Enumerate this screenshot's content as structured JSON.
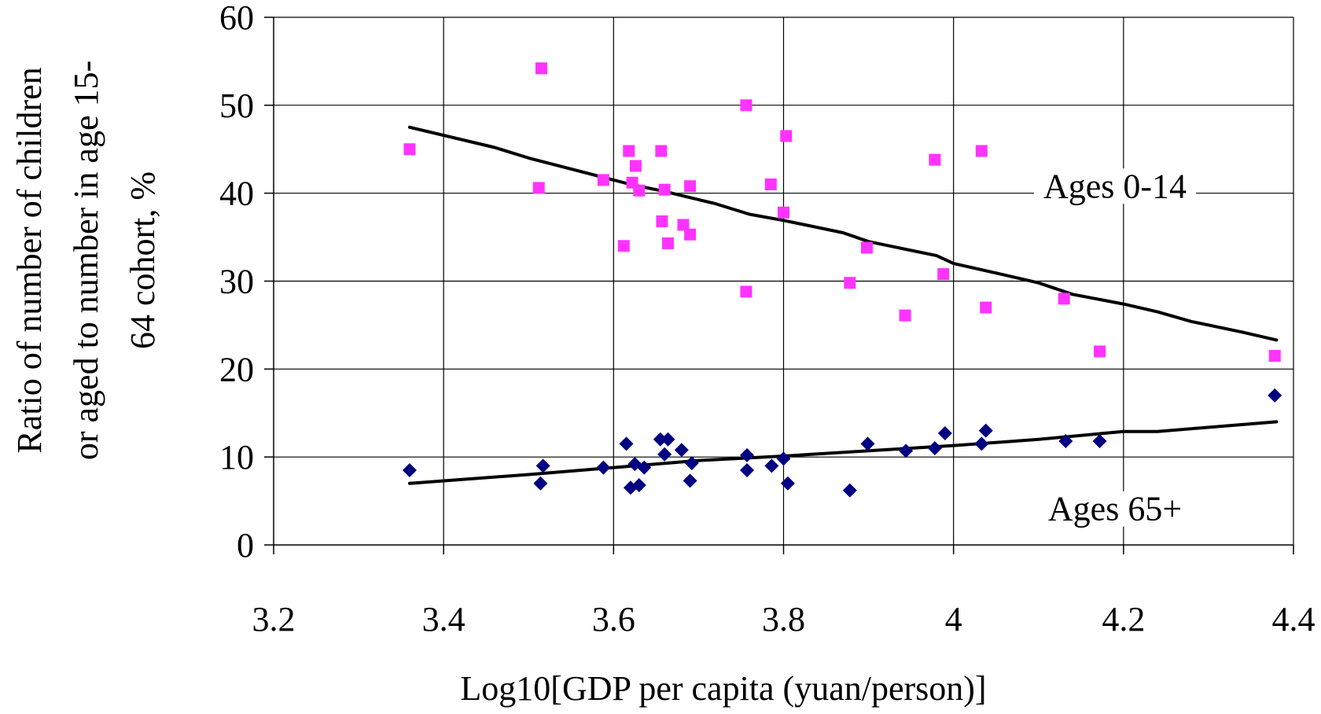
{
  "chart_data": {
    "type": "scatter",
    "title": "",
    "xlabel": "Log10[GDP per capita (yuan/person)]",
    "ylabel_lines": [
      "Ratio of number of children",
      "or aged to number in age 15-",
      "64 cohort, %"
    ],
    "xlim": [
      3.2,
      4.4
    ],
    "ylim": [
      0,
      60
    ],
    "x_ticks": [
      3.2,
      3.4,
      3.6,
      3.8,
      4,
      4.2,
      4.4
    ],
    "x_tick_labels": [
      "3.2",
      "3.4",
      "3.6",
      "3.8",
      "4",
      "4.2",
      "4.4"
    ],
    "y_ticks": [
      0,
      10,
      20,
      30,
      40,
      50,
      60
    ],
    "y_tick_labels": [
      "0",
      "10",
      "20",
      "30",
      "40",
      "50",
      "60"
    ],
    "grid": true,
    "legend": "none",
    "annotations": [
      {
        "text": "Ages 0-14",
        "x": 4.19,
        "y": 39.5
      },
      {
        "text": "Ages 65+",
        "x": 4.19,
        "y": 2.8
      }
    ],
    "series": [
      {
        "marker": "square",
        "color": "#ff33ff",
        "points": [
          [
            3.36,
            45
          ],
          [
            3.515,
            54.2
          ],
          [
            3.512,
            40.6
          ],
          [
            3.588,
            41.5
          ],
          [
            3.612,
            34
          ],
          [
            3.618,
            44.8
          ],
          [
            3.622,
            41.2
          ],
          [
            3.626,
            43.1
          ],
          [
            3.63,
            40.3
          ],
          [
            3.656,
            44.8
          ],
          [
            3.657,
            36.8
          ],
          [
            3.66,
            40.4
          ],
          [
            3.664,
            34.3
          ],
          [
            3.682,
            36.4
          ],
          [
            3.69,
            35.3
          ],
          [
            3.69,
            40.8
          ],
          [
            3.756,
            50
          ],
          [
            3.756,
            28.8
          ],
          [
            3.785,
            41
          ],
          [
            3.8,
            37.8
          ],
          [
            3.803,
            46.5
          ],
          [
            3.878,
            29.8
          ],
          [
            3.898,
            33.8
          ],
          [
            3.943,
            26.1
          ],
          [
            3.978,
            43.8
          ],
          [
            3.988,
            30.8
          ],
          [
            4.033,
            44.8
          ],
          [
            4.038,
            27
          ],
          [
            4.13,
            28
          ],
          [
            4.172,
            22
          ],
          [
            4.378,
            21.5
          ]
        ]
      },
      {
        "marker": "diamond",
        "color": "#000080",
        "points": [
          [
            3.36,
            8.5
          ],
          [
            3.517,
            9
          ],
          [
            3.514,
            7
          ],
          [
            3.588,
            8.8
          ],
          [
            3.615,
            11.5
          ],
          [
            3.62,
            6.5
          ],
          [
            3.625,
            9.2
          ],
          [
            3.63,
            6.8
          ],
          [
            3.636,
            8.8
          ],
          [
            3.655,
            12
          ],
          [
            3.66,
            10.3
          ],
          [
            3.664,
            12
          ],
          [
            3.68,
            10.8
          ],
          [
            3.692,
            9.3
          ],
          [
            3.69,
            7.3
          ],
          [
            3.757,
            10.2
          ],
          [
            3.757,
            8.5
          ],
          [
            3.786,
            9
          ],
          [
            3.8,
            9.8
          ],
          [
            3.805,
            7
          ],
          [
            3.878,
            6.2
          ],
          [
            3.899,
            11.5
          ],
          [
            3.944,
            10.7
          ],
          [
            3.978,
            11
          ],
          [
            3.99,
            12.7
          ],
          [
            4.033,
            11.5
          ],
          [
            4.038,
            13
          ],
          [
            4.132,
            11.8
          ],
          [
            4.172,
            11.8
          ],
          [
            4.378,
            17
          ]
        ]
      }
    ],
    "trend_lines": [
      {
        "color": "#000000",
        "points": [
          [
            3.36,
            47.5
          ],
          [
            3.46,
            45.2
          ],
          [
            3.5,
            44
          ],
          [
            3.58,
            42
          ],
          [
            3.62,
            41
          ],
          [
            3.66,
            40.2
          ],
          [
            3.72,
            38.8
          ],
          [
            3.76,
            37.6
          ],
          [
            3.8,
            36.9
          ],
          [
            3.87,
            35.5
          ],
          [
            3.9,
            34.5
          ],
          [
            3.98,
            32.9
          ],
          [
            4,
            32
          ],
          [
            4.06,
            30.7
          ],
          [
            4.1,
            29.8
          ],
          [
            4.14,
            28.5
          ],
          [
            4.2,
            27.4
          ],
          [
            4.24,
            26.5
          ],
          [
            4.28,
            25.4
          ],
          [
            4.34,
            24.2
          ],
          [
            4.38,
            23.3
          ]
        ]
      },
      {
        "color": "#000000",
        "points": [
          [
            3.36,
            7
          ],
          [
            3.5,
            8
          ],
          [
            3.6,
            8.8
          ],
          [
            3.7,
            9.6
          ],
          [
            3.8,
            10.1
          ],
          [
            3.9,
            10.7
          ],
          [
            4,
            11.3
          ],
          [
            4.1,
            12
          ],
          [
            4.2,
            12.9
          ],
          [
            4.24,
            12.9
          ],
          [
            4.38,
            14
          ]
        ]
      }
    ]
  }
}
